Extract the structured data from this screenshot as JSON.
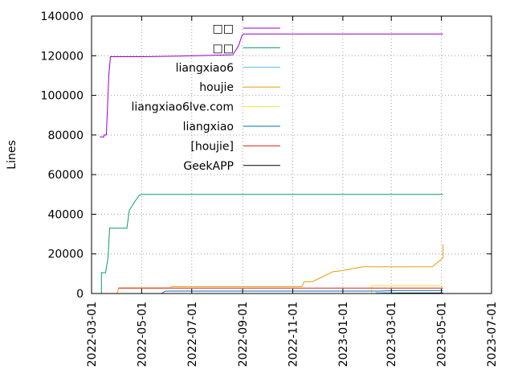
{
  "chart_data": {
    "type": "line",
    "title": "",
    "xlabel": "",
    "ylabel": "Lines",
    "xlim": [
      "2022-03-01",
      "2023-07-01"
    ],
    "ylim": [
      0,
      140000
    ],
    "yticks": [
      0,
      20000,
      40000,
      60000,
      80000,
      100000,
      120000,
      140000
    ],
    "xticks": [
      "2022-03-01",
      "2022-05-01",
      "2022-07-01",
      "2022-09-01",
      "2022-11-01",
      "2023-01-01",
      "2023-03-01",
      "2023-05-01",
      "2023-07-01"
    ],
    "grid": true,
    "legend_position": "top-right",
    "series": [
      {
        "name": "□□",
        "color": "#9400d3",
        "points": [
          [
            "2022-03-11",
            79000
          ],
          [
            "2022-03-16",
            79000
          ],
          [
            "2022-03-16",
            80000
          ],
          [
            "2022-03-19",
            80000
          ],
          [
            "2022-03-22",
            110000
          ],
          [
            "2022-03-24",
            119500
          ],
          [
            "2022-05-01",
            119500
          ],
          [
            "2022-06-15",
            119800
          ],
          [
            "2022-08-20",
            120500
          ],
          [
            "2022-08-27",
            125000
          ],
          [
            "2022-08-31",
            130000
          ],
          [
            "2022-09-02",
            131000
          ],
          [
            "2023-05-03",
            131000
          ]
        ]
      },
      {
        "name": "□□",
        "color": "#009e73",
        "points": [
          [
            "2022-03-11",
            0
          ],
          [
            "2022-03-13",
            0
          ],
          [
            "2022-03-13",
            10500
          ],
          [
            "2022-03-18",
            10500
          ],
          [
            "2022-03-21",
            18000
          ],
          [
            "2022-03-23",
            33000
          ],
          [
            "2022-04-13",
            33000
          ],
          [
            "2022-04-16",
            42000
          ],
          [
            "2022-04-22",
            46000
          ],
          [
            "2022-04-28",
            49500
          ],
          [
            "2022-05-01",
            50000
          ],
          [
            "2023-05-03",
            50000
          ]
        ]
      },
      {
        "name": "liangxiao6",
        "color": "#56b4e9",
        "points": [
          [
            "2023-02-10",
            300
          ],
          [
            "2023-05-03",
            300
          ]
        ]
      },
      {
        "name": "houjie",
        "color": "#e69f00",
        "points": [
          [
            "2022-04-01",
            0
          ],
          [
            "2022-04-03",
            2800
          ],
          [
            "2022-06-05",
            2800
          ],
          [
            "2022-06-06",
            3500
          ],
          [
            "2022-11-01",
            3500
          ],
          [
            "2022-11-12",
            3500
          ],
          [
            "2022-11-15",
            6000
          ],
          [
            "2022-11-25",
            6000
          ],
          [
            "2022-12-20",
            11000
          ],
          [
            "2022-12-30",
            11500
          ],
          [
            "2023-01-25",
            13500
          ],
          [
            "2023-04-20",
            13500
          ],
          [
            "2023-05-03",
            18000
          ],
          [
            "2023-05-03",
            24800
          ]
        ]
      },
      {
        "name": "liangxiao6lve.com",
        "color": "#f0e442",
        "points": [
          [
            "2023-02-05",
            300
          ],
          [
            "2023-02-05",
            4000
          ],
          [
            "2023-05-03",
            4000
          ]
        ]
      },
      {
        "name": "liangxiao",
        "color": "#0072b2",
        "points": [
          [
            "2022-05-25",
            0
          ],
          [
            "2022-05-30",
            1200
          ],
          [
            "2023-02-15",
            1200
          ],
          [
            "2023-03-10",
            1500
          ],
          [
            "2023-05-03",
            1500
          ]
        ]
      },
      {
        "name": "[houjie]",
        "color": "#e51e10",
        "points": [
          [
            "2022-04-03",
            2700
          ],
          [
            "2023-05-03",
            2700
          ]
        ]
      },
      {
        "name": "GeekAPP",
        "color": "#000000",
        "points": [
          [
            "2023-02-15",
            0
          ],
          [
            "2023-03-10",
            200
          ],
          [
            "2023-05-03",
            200
          ]
        ]
      }
    ]
  }
}
